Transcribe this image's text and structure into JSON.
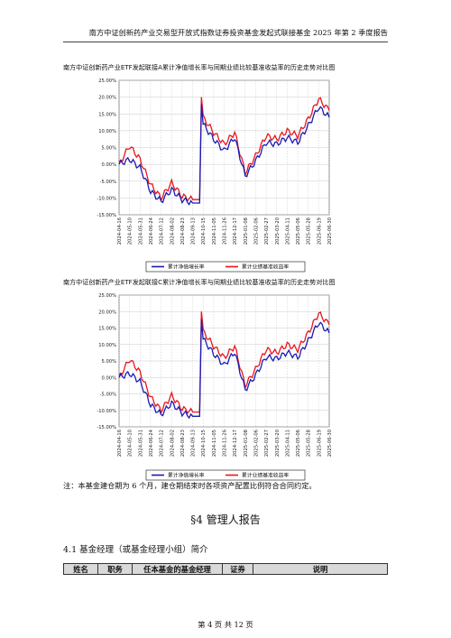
{
  "header": {
    "title": "南方中证创新药产业交易型开放式指数证券投资基金发起式联接基金 2025 年第 2 季度报告"
  },
  "legend": {
    "nav": "累计净值增长率",
    "bench": "累计业绩基准收益率"
  },
  "colors": {
    "nav": "#1a1ab4",
    "bench": "#e8151b",
    "grid": "#c8c8c8",
    "axis": "#666666"
  },
  "chart_data": [
    {
      "type": "line",
      "title": "南方中证创新药产业ETF发起联接A累计净值增长率与同期业绩比较基准收益率的历史走势对比图",
      "ylim": [
        -15,
        25
      ],
      "yticks": [
        "-15.00%",
        "-10.00%",
        "-5.00%",
        "0.00%",
        "5.00%",
        "10.00%",
        "15.00%",
        "20.00%",
        "25.00%"
      ],
      "x": [
        "2024-04-16",
        "2024-05-10",
        "2024-05-31",
        "2024-06-24",
        "2024-07-12",
        "2024-08-02",
        "2024-08-23",
        "2024-09-13",
        "2024-10-15",
        "2024-11-05",
        "2024-11-26",
        "2024-12-17",
        "2025-01-08",
        "2025-02-06",
        "2025-02-27",
        "2025-03-20",
        "2025-04-11",
        "2025-05-06",
        "2025-05-28",
        "2025-06-19",
        "2025-06-30"
      ],
      "series": [
        {
          "name": "累计净值增长率",
          "values": [
            0.0,
            1.5,
            -1.0,
            -8.0,
            -11.0,
            -7.5,
            -10.5,
            -11.5,
            12.0,
            7.5,
            4.0,
            8.0,
            -3.5,
            1.0,
            6.5,
            6.0,
            8.0,
            6.5,
            11.5,
            17.0,
            14.0
          ]
        },
        {
          "name": "累计业绩基准收益率",
          "values": [
            0.0,
            5.5,
            1.5,
            -6.0,
            -10.0,
            -5.5,
            -9.5,
            -10.5,
            14.0,
            9.5,
            6.0,
            9.5,
            -2.5,
            2.5,
            8.5,
            7.5,
            10.0,
            8.5,
            13.5,
            19.5,
            16.0
          ]
        }
      ]
    },
    {
      "type": "line",
      "title": "南方中证创新药产业ETF发起联接C累计净值增长率与同期业绩比较基准收益率的历史走势对比图",
      "ylim": [
        -15,
        25
      ],
      "yticks": [
        "-15.00%",
        "-10.00%",
        "-5.00%",
        "0.00%",
        "5.00%",
        "10.00%",
        "15.00%",
        "20.00%",
        "25.00%"
      ],
      "x": [
        "2024-04-16",
        "2024-05-10",
        "2024-05-31",
        "2024-06-24",
        "2024-07-12",
        "2024-08-02",
        "2024-08-23",
        "2024-09-13",
        "2024-10-15",
        "2024-11-05",
        "2024-11-26",
        "2024-12-17",
        "2025-01-08",
        "2025-02-06",
        "2025-02-27",
        "2025-03-20",
        "2025-04-11",
        "2025-05-06",
        "2025-05-28",
        "2025-06-19",
        "2025-06-30"
      ],
      "series": [
        {
          "name": "累计净值增长率",
          "values": [
            0.0,
            1.2,
            -1.3,
            -8.3,
            -11.3,
            -7.8,
            -10.8,
            -11.8,
            11.7,
            7.2,
            3.7,
            7.7,
            -3.8,
            0.7,
            6.2,
            5.7,
            7.6,
            6.1,
            11.1,
            16.6,
            13.5
          ]
        },
        {
          "name": "累计业绩基准收益率",
          "values": [
            0.0,
            5.5,
            1.5,
            -6.0,
            -10.0,
            -5.5,
            -9.5,
            -10.5,
            14.0,
            9.5,
            6.0,
            9.5,
            -2.5,
            2.5,
            8.5,
            7.5,
            10.0,
            8.5,
            13.5,
            19.5,
            16.0
          ]
        }
      ]
    }
  ],
  "note": "注：本基金建仓期为 6 个月，建仓期结束时各项资产配置比例符合合同约定。",
  "section": {
    "title": "§4  管理人报告"
  },
  "subsection": {
    "title": "4.1  基金经理（或基金经理小组）简介"
  },
  "table": {
    "headers": [
      "姓名",
      "职务",
      "任本基金的基金经理",
      "证券",
      "说明"
    ]
  },
  "footer": {
    "page": "第 4 页 共 12 页"
  }
}
